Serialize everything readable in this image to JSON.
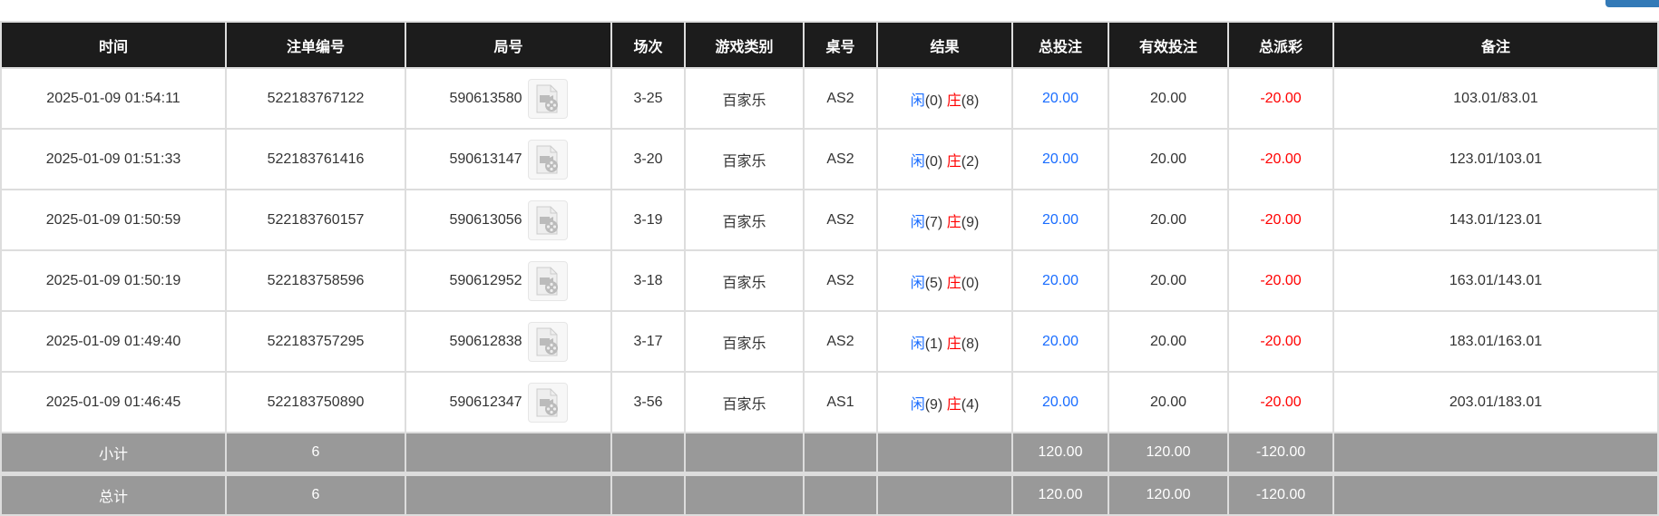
{
  "headers": [
    "时间",
    "注单编号",
    "局号",
    "场次",
    "游戏类别",
    "桌号",
    "结果",
    "总投注",
    "有效投注",
    "总派彩",
    "备注"
  ],
  "rows": [
    {
      "time": "2025-01-09 01:54:11",
      "bet_id": "522183767122",
      "round": "590613580",
      "session": "3-25",
      "game": "百家乐",
      "table": "AS2",
      "player": "闲",
      "player_pts": "(0)",
      "banker": "庄",
      "banker_pts": "(8)",
      "total_bet": "20.00",
      "valid_bet": "20.00",
      "payout": "-20.00",
      "note": "103.01/83.01"
    },
    {
      "time": "2025-01-09 01:51:33",
      "bet_id": "522183761416",
      "round": "590613147",
      "session": "3-20",
      "game": "百家乐",
      "table": "AS2",
      "player": "闲",
      "player_pts": "(0)",
      "banker": "庄",
      "banker_pts": "(2)",
      "total_bet": "20.00",
      "valid_bet": "20.00",
      "payout": "-20.00",
      "note": "123.01/103.01"
    },
    {
      "time": "2025-01-09 01:50:59",
      "bet_id": "522183760157",
      "round": "590613056",
      "session": "3-19",
      "game": "百家乐",
      "table": "AS2",
      "player": "闲",
      "player_pts": "(7)",
      "banker": "庄",
      "banker_pts": "(9)",
      "total_bet": "20.00",
      "valid_bet": "20.00",
      "payout": "-20.00",
      "note": "143.01/123.01"
    },
    {
      "time": "2025-01-09 01:50:19",
      "bet_id": "522183758596",
      "round": "590612952",
      "session": "3-18",
      "game": "百家乐",
      "table": "AS2",
      "player": "闲",
      "player_pts": "(5)",
      "banker": "庄",
      "banker_pts": "(0)",
      "total_bet": "20.00",
      "valid_bet": "20.00",
      "payout": "-20.00",
      "note": "163.01/143.01"
    },
    {
      "time": "2025-01-09 01:49:40",
      "bet_id": "522183757295",
      "round": "590612838",
      "session": "3-17",
      "game": "百家乐",
      "table": "AS2",
      "player": "闲",
      "player_pts": "(1)",
      "banker": "庄",
      "banker_pts": "(8)",
      "total_bet": "20.00",
      "valid_bet": "20.00",
      "payout": "-20.00",
      "note": "183.01/163.01"
    },
    {
      "time": "2025-01-09 01:46:45",
      "bet_id": "522183750890",
      "round": "590612347",
      "session": "3-56",
      "game": "百家乐",
      "table": "AS1",
      "player": "闲",
      "player_pts": "(9)",
      "banker": "庄",
      "banker_pts": "(4)",
      "total_bet": "20.00",
      "valid_bet": "20.00",
      "payout": "-20.00",
      "note": "203.01/183.01"
    }
  ],
  "subtotal": {
    "label": "小计",
    "count": "6",
    "total_bet": "120.00",
    "valid_bet": "120.00",
    "payout": "-120.00"
  },
  "total": {
    "label": "总计",
    "count": "6",
    "total_bet": "120.00",
    "valid_bet": "120.00",
    "payout": "-120.00"
  },
  "colors": {
    "header_bg": "#1c1c1c",
    "player": "#1a6dff",
    "banker": "#ff0000",
    "summary_bg": "#999999"
  },
  "icons": {
    "replay": "video-file-icon"
  }
}
